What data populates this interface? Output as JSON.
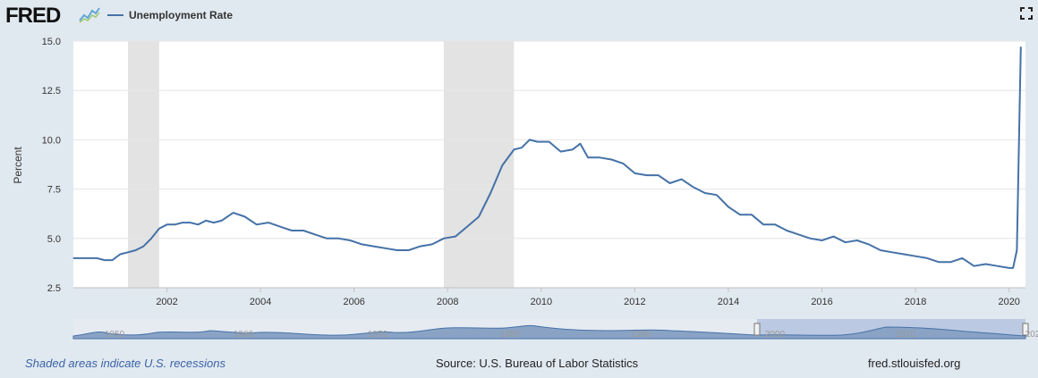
{
  "header": {
    "logo_text": "FRED",
    "legend_label": "Unemployment Rate",
    "series_color": "#4572a7"
  },
  "footer": {
    "recession_note": "Shaded areas indicate U.S. recessions",
    "source": "Source: U.S. Bureau of Labor Statistics",
    "site": "fred.stlouisfed.org"
  },
  "chart_data": {
    "type": "line",
    "title": "",
    "xlabel": "",
    "ylabel": "Percent",
    "ylim": [
      2.5,
      15.0
    ],
    "yticks": [
      "2.5",
      "5.0",
      "7.5",
      "10.0",
      "12.5",
      "15.0"
    ],
    "xticks": [
      "2002",
      "2004",
      "2006",
      "2008",
      "2010",
      "2012",
      "2014",
      "2016",
      "2018",
      "2020"
    ],
    "grid": true,
    "recessions": [
      [
        "2001-03",
        "2001-11"
      ],
      [
        "2007-12",
        "2009-06"
      ]
    ],
    "series": [
      {
        "name": "Unemployment Rate",
        "x": [
          "2000-01",
          "2000-03",
          "2000-05",
          "2000-07",
          "2000-09",
          "2000-11",
          "2001-01",
          "2001-03",
          "2001-05",
          "2001-07",
          "2001-09",
          "2001-11",
          "2002-01",
          "2002-03",
          "2002-05",
          "2002-07",
          "2002-09",
          "2002-11",
          "2003-01",
          "2003-03",
          "2003-06",
          "2003-09",
          "2003-12",
          "2004-03",
          "2004-06",
          "2004-09",
          "2004-12",
          "2005-03",
          "2005-06",
          "2005-09",
          "2005-12",
          "2006-03",
          "2006-06",
          "2006-09",
          "2006-12",
          "2007-03",
          "2007-06",
          "2007-09",
          "2007-12",
          "2008-03",
          "2008-06",
          "2008-09",
          "2008-12",
          "2009-03",
          "2009-06",
          "2009-08",
          "2009-10",
          "2009-12",
          "2010-03",
          "2010-06",
          "2010-09",
          "2010-11",
          "2011-01",
          "2011-04",
          "2011-07",
          "2011-10",
          "2012-01",
          "2012-04",
          "2012-07",
          "2012-10",
          "2013-01",
          "2013-04",
          "2013-07",
          "2013-10",
          "2014-01",
          "2014-04",
          "2014-07",
          "2014-10",
          "2015-01",
          "2015-04",
          "2015-07",
          "2015-10",
          "2016-01",
          "2016-04",
          "2016-07",
          "2016-10",
          "2017-01",
          "2017-04",
          "2017-07",
          "2017-10",
          "2018-01",
          "2018-04",
          "2018-07",
          "2018-10",
          "2019-01",
          "2019-04",
          "2019-07",
          "2019-10",
          "2020-01",
          "2020-02",
          "2020-03",
          "2020-04"
        ],
        "values": [
          4.0,
          4.0,
          4.0,
          4.0,
          3.9,
          3.9,
          4.2,
          4.3,
          4.4,
          4.6,
          5.0,
          5.5,
          5.7,
          5.7,
          5.8,
          5.8,
          5.7,
          5.9,
          5.8,
          5.9,
          6.3,
          6.1,
          5.7,
          5.8,
          5.6,
          5.4,
          5.4,
          5.2,
          5.0,
          5.0,
          4.9,
          4.7,
          4.6,
          4.5,
          4.4,
          4.4,
          4.6,
          4.7,
          5.0,
          5.1,
          5.6,
          6.1,
          7.3,
          8.7,
          9.5,
          9.6,
          10.0,
          9.9,
          9.9,
          9.4,
          9.5,
          9.8,
          9.1,
          9.1,
          9.0,
          8.8,
          8.3,
          8.2,
          8.2,
          7.8,
          8.0,
          7.6,
          7.3,
          7.2,
          6.6,
          6.2,
          6.2,
          5.7,
          5.7,
          5.4,
          5.2,
          5.0,
          4.9,
          5.1,
          4.8,
          4.9,
          4.7,
          4.4,
          4.3,
          4.2,
          4.1,
          4.0,
          3.8,
          3.8,
          4.0,
          3.6,
          3.7,
          3.6,
          3.5,
          3.5,
          4.4,
          14.7
        ]
      }
    ]
  },
  "navigator": {
    "labels": [
      "1950",
      "1960",
      "1970",
      "1980",
      "1990",
      "2000",
      "2010",
      "202"
    ]
  }
}
